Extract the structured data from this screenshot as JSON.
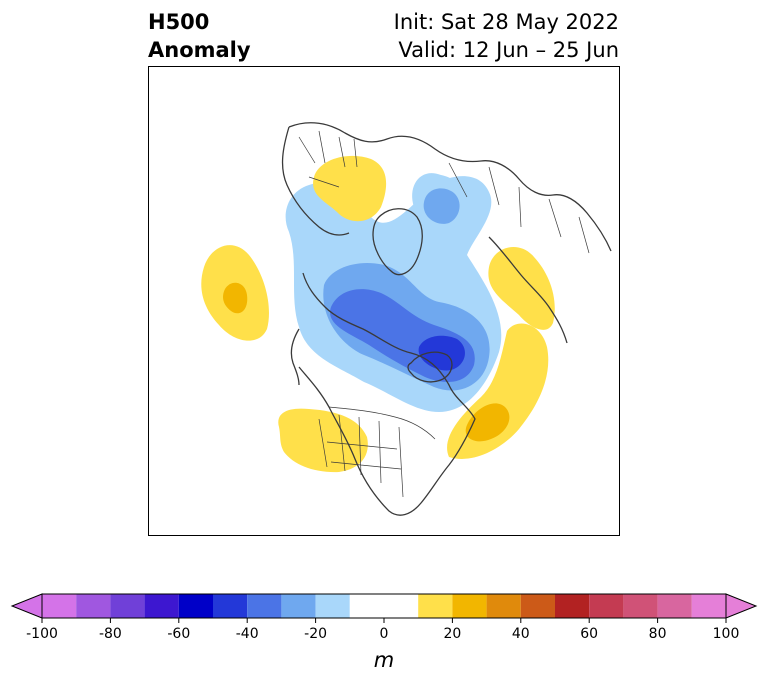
{
  "title": {
    "left_line1": "H500",
    "left_line2": "Anomaly",
    "right_line1": "Init: Sat 28 May 2022",
    "right_line2": "Valid: 12 Jun – 25 Jun"
  },
  "colorbar": {
    "unit_label": "m",
    "ticks": [
      "-100",
      "-80",
      "-60",
      "-40",
      "-20",
      "0",
      "20",
      "40",
      "60",
      "80",
      "100"
    ],
    "levels": [
      -100,
      -90,
      -80,
      -70,
      -60,
      -50,
      -40,
      -30,
      -20,
      -10,
      10,
      20,
      30,
      40,
      50,
      60,
      70,
      80,
      90,
      100
    ],
    "colors": [
      "#d473e8",
      "#a057e0",
      "#7040d8",
      "#3d17d0",
      "#0000c8",
      "#2338d8",
      "#4b74e6",
      "#6fa8ef",
      "#a9d7fa",
      "#ffffff",
      "#ffe04a",
      "#f2b600",
      "#e08a0c",
      "#cc5a18",
      "#b22222",
      "#c43b52",
      "#d05277",
      "#d8669f",
      "#e57fd8"
    ],
    "extend_low_color": "#d473e8",
    "extend_high_color": "#e57fd8"
  },
  "map": {
    "land_outline_color": "#3a3a3a",
    "anomaly_features": [
      {
        "id": "positive-north-atlantic-ridge",
        "sign": "positive"
      },
      {
        "id": "positive-scandinavia-ridge",
        "sign": "positive"
      },
      {
        "id": "positive-western-us-ridge",
        "sign": "positive"
      },
      {
        "id": "positive-siberia-ridge",
        "sign": "positive"
      },
      {
        "id": "positive-north-pacific-ridge",
        "sign": "positive"
      },
      {
        "id": "negative-arctic-trough",
        "sign": "negative"
      },
      {
        "id": "negative-hudson-bay-trough",
        "sign": "negative"
      },
      {
        "id": "negative-barents-trough",
        "sign": "negative"
      }
    ]
  }
}
